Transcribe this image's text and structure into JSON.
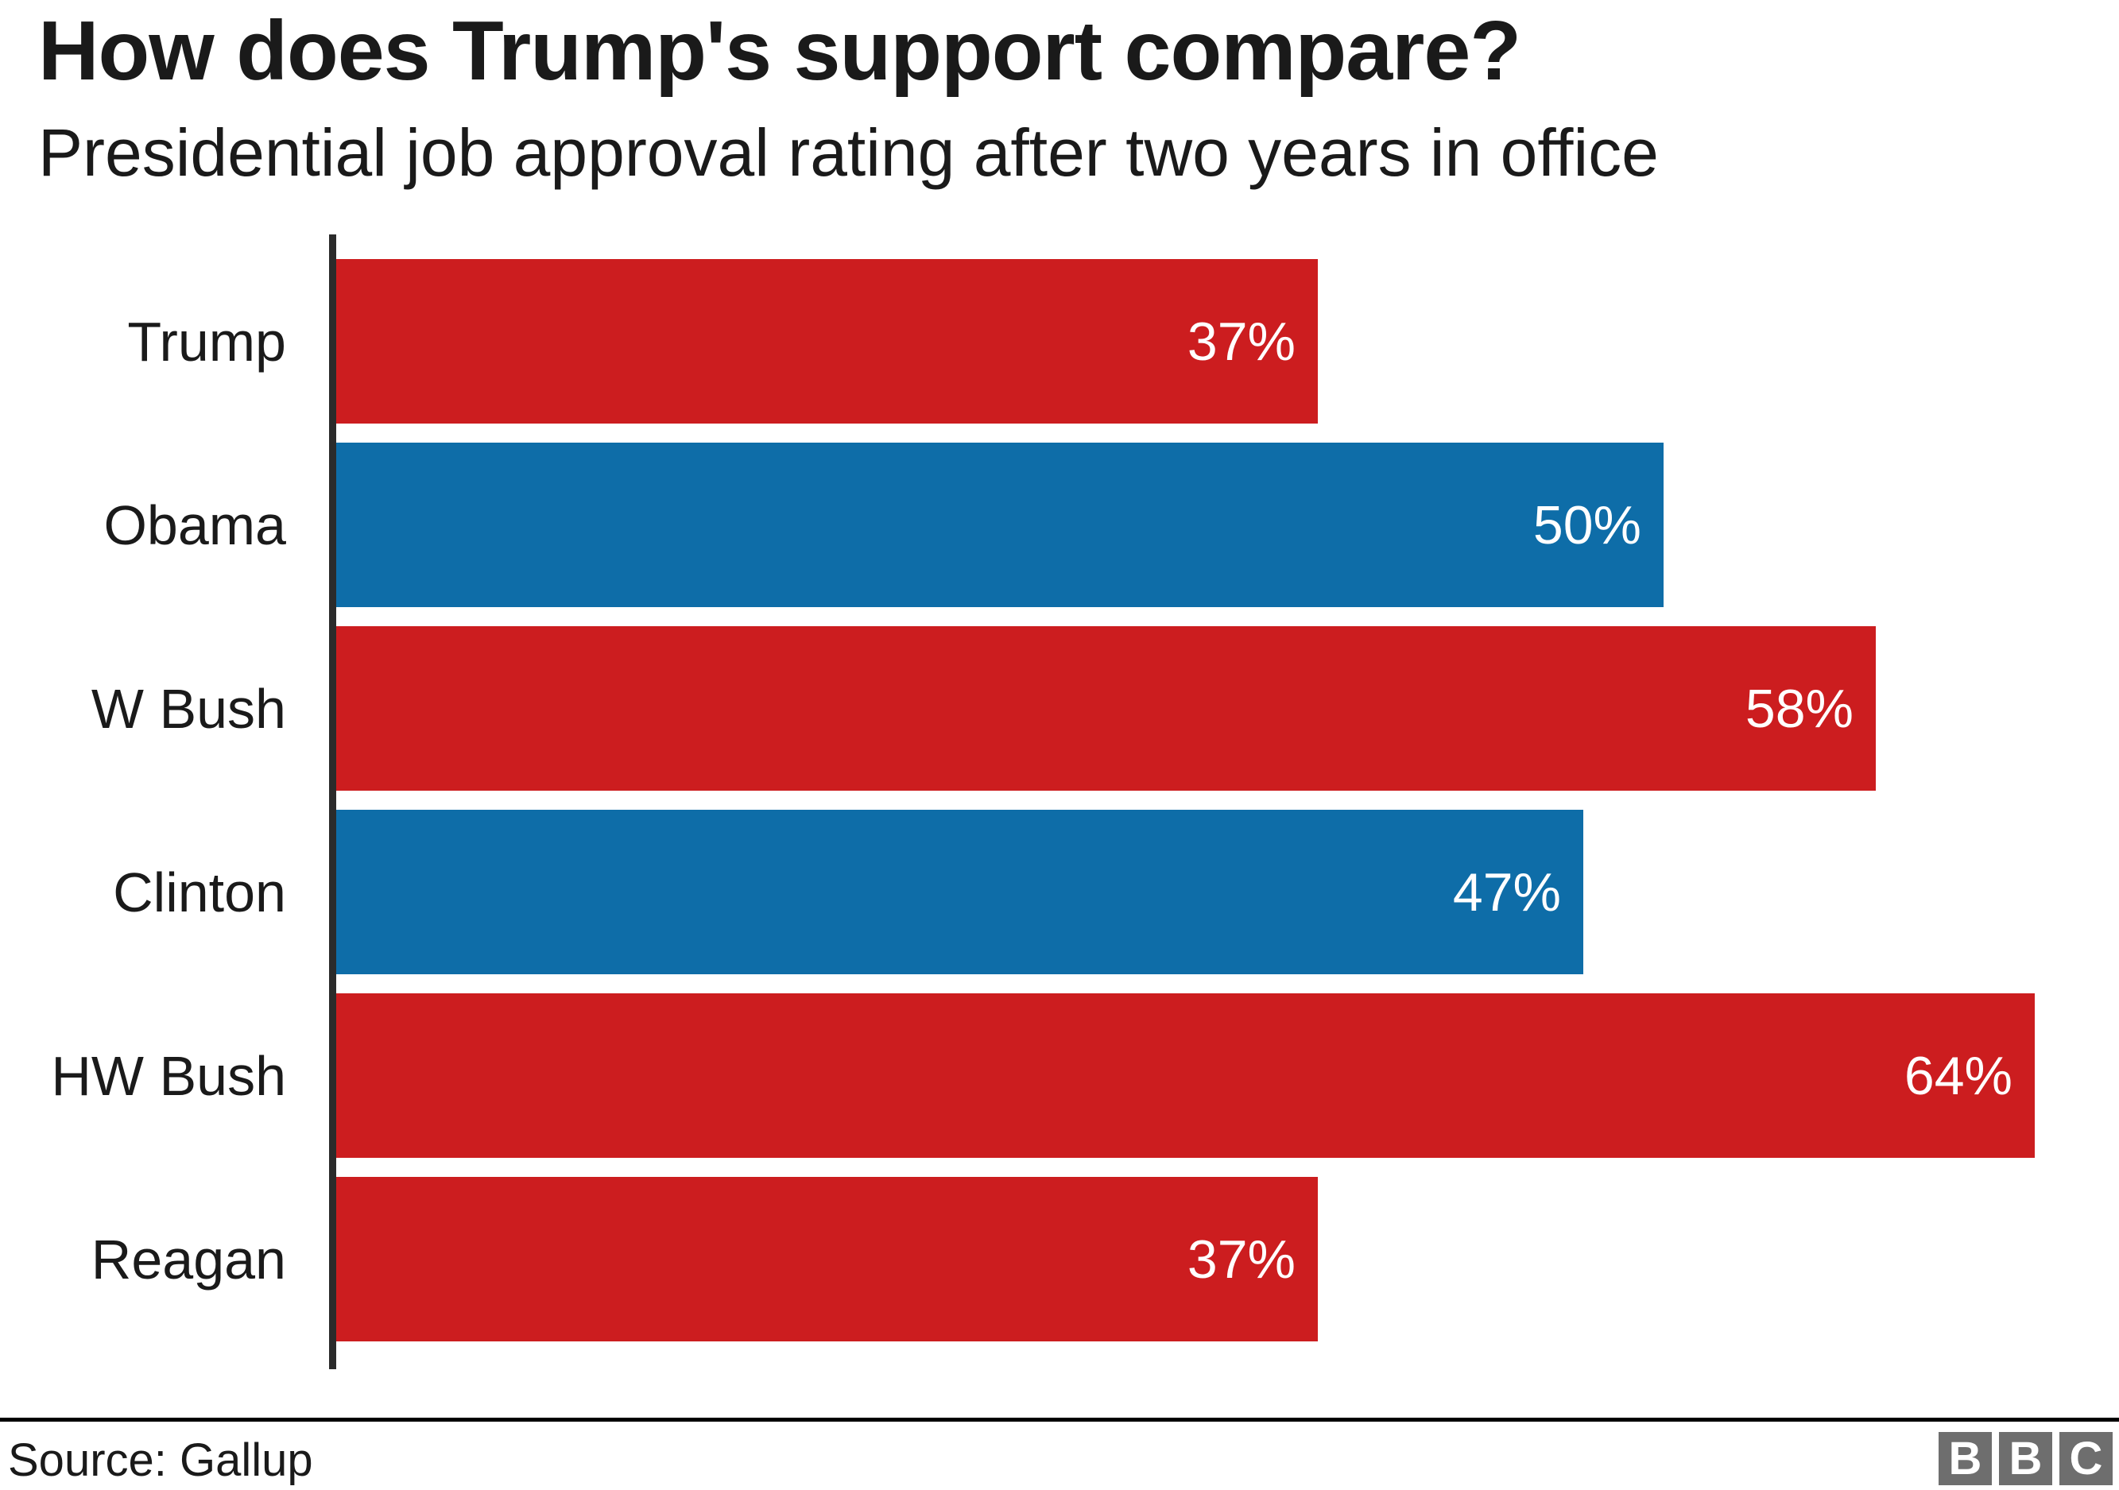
{
  "header": {
    "title": "How does Trump's support compare?",
    "subtitle": "Presidential job approval rating after two years in office"
  },
  "chart_data": {
    "type": "bar",
    "orientation": "horizontal",
    "title": "How does Trump's support compare?",
    "subtitle": "Presidential job approval rating after two years in office",
    "categories": [
      "Trump",
      "Obama",
      "W Bush",
      "Clinton",
      "HW Bush",
      "Reagan"
    ],
    "values": [
      37,
      50,
      58,
      47,
      64,
      37
    ],
    "value_labels": [
      "37%",
      "50%",
      "58%",
      "47%",
      "64%",
      "37%"
    ],
    "bar_colors": [
      "#cc1d1f",
      "#0e6da8",
      "#cc1d1f",
      "#0e6da8",
      "#cc1d1f",
      "#cc1d1f"
    ],
    "xlabel": "",
    "ylabel": "",
    "xlim": [
      0,
      64
    ],
    "grid": false,
    "legend": false,
    "value_label_position": "inside-end",
    "source": "Gallup"
  },
  "footer": {
    "source": "Source: Gallup",
    "logo_letters": [
      "B",
      "B",
      "C"
    ]
  },
  "colors": {
    "republican_red": "#cc1d1f",
    "democrat_blue": "#0e6da8",
    "axis_line": "#2b2b2b",
    "divider": "#000000",
    "text": "#1a1a1a",
    "bar_value_text": "#ffffff",
    "bbc_logo_grey": "#6e6e6e"
  }
}
